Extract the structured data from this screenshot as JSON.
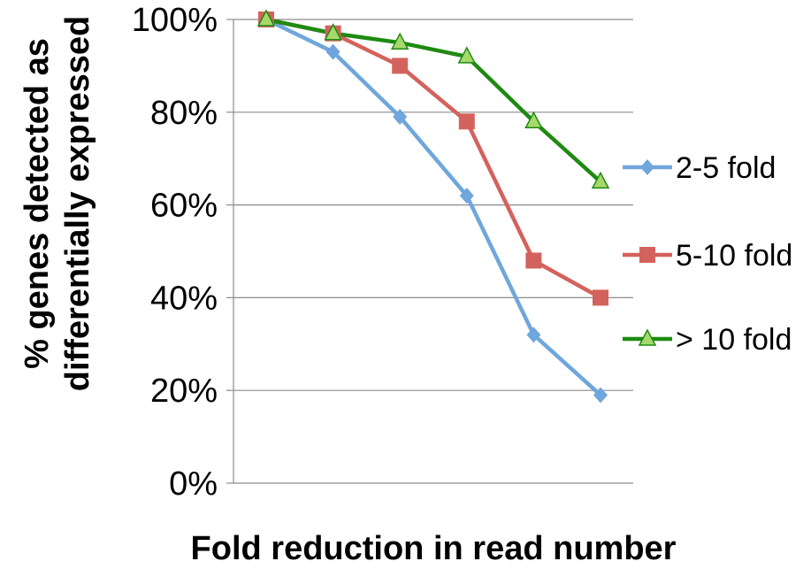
{
  "chart_data": {
    "type": "line",
    "title": "",
    "xlabel": "Fold reduction in read number",
    "ylabel_lines": [
      "% genes detected as",
      "differentially expressed"
    ],
    "x": [
      1,
      2,
      3,
      4,
      5,
      6
    ],
    "ylim": [
      0,
      100
    ],
    "yticks": [
      0,
      20,
      40,
      60,
      80,
      100
    ],
    "ytick_labels": [
      "0%",
      "20%",
      "40%",
      "60%",
      "80%",
      "100%"
    ],
    "grid": "horizontal",
    "legend_position": "right",
    "series": [
      {
        "name": "2-5 fold",
        "values": [
          100,
          93,
          79,
          62,
          32,
          19
        ],
        "color": "#6fa6dc",
        "marker": "diamond"
      },
      {
        "name": "5-10 fold",
        "values": [
          100,
          97,
          90,
          78,
          48,
          40
        ],
        "color": "#d4625c",
        "marker": "square"
      },
      {
        "name": "> 10 fold",
        "values": [
          100,
          97,
          95,
          92,
          78,
          65
        ],
        "color": "#1f8a12",
        "marker": "triangle",
        "marker_fill": "#a6d96a"
      }
    ]
  }
}
